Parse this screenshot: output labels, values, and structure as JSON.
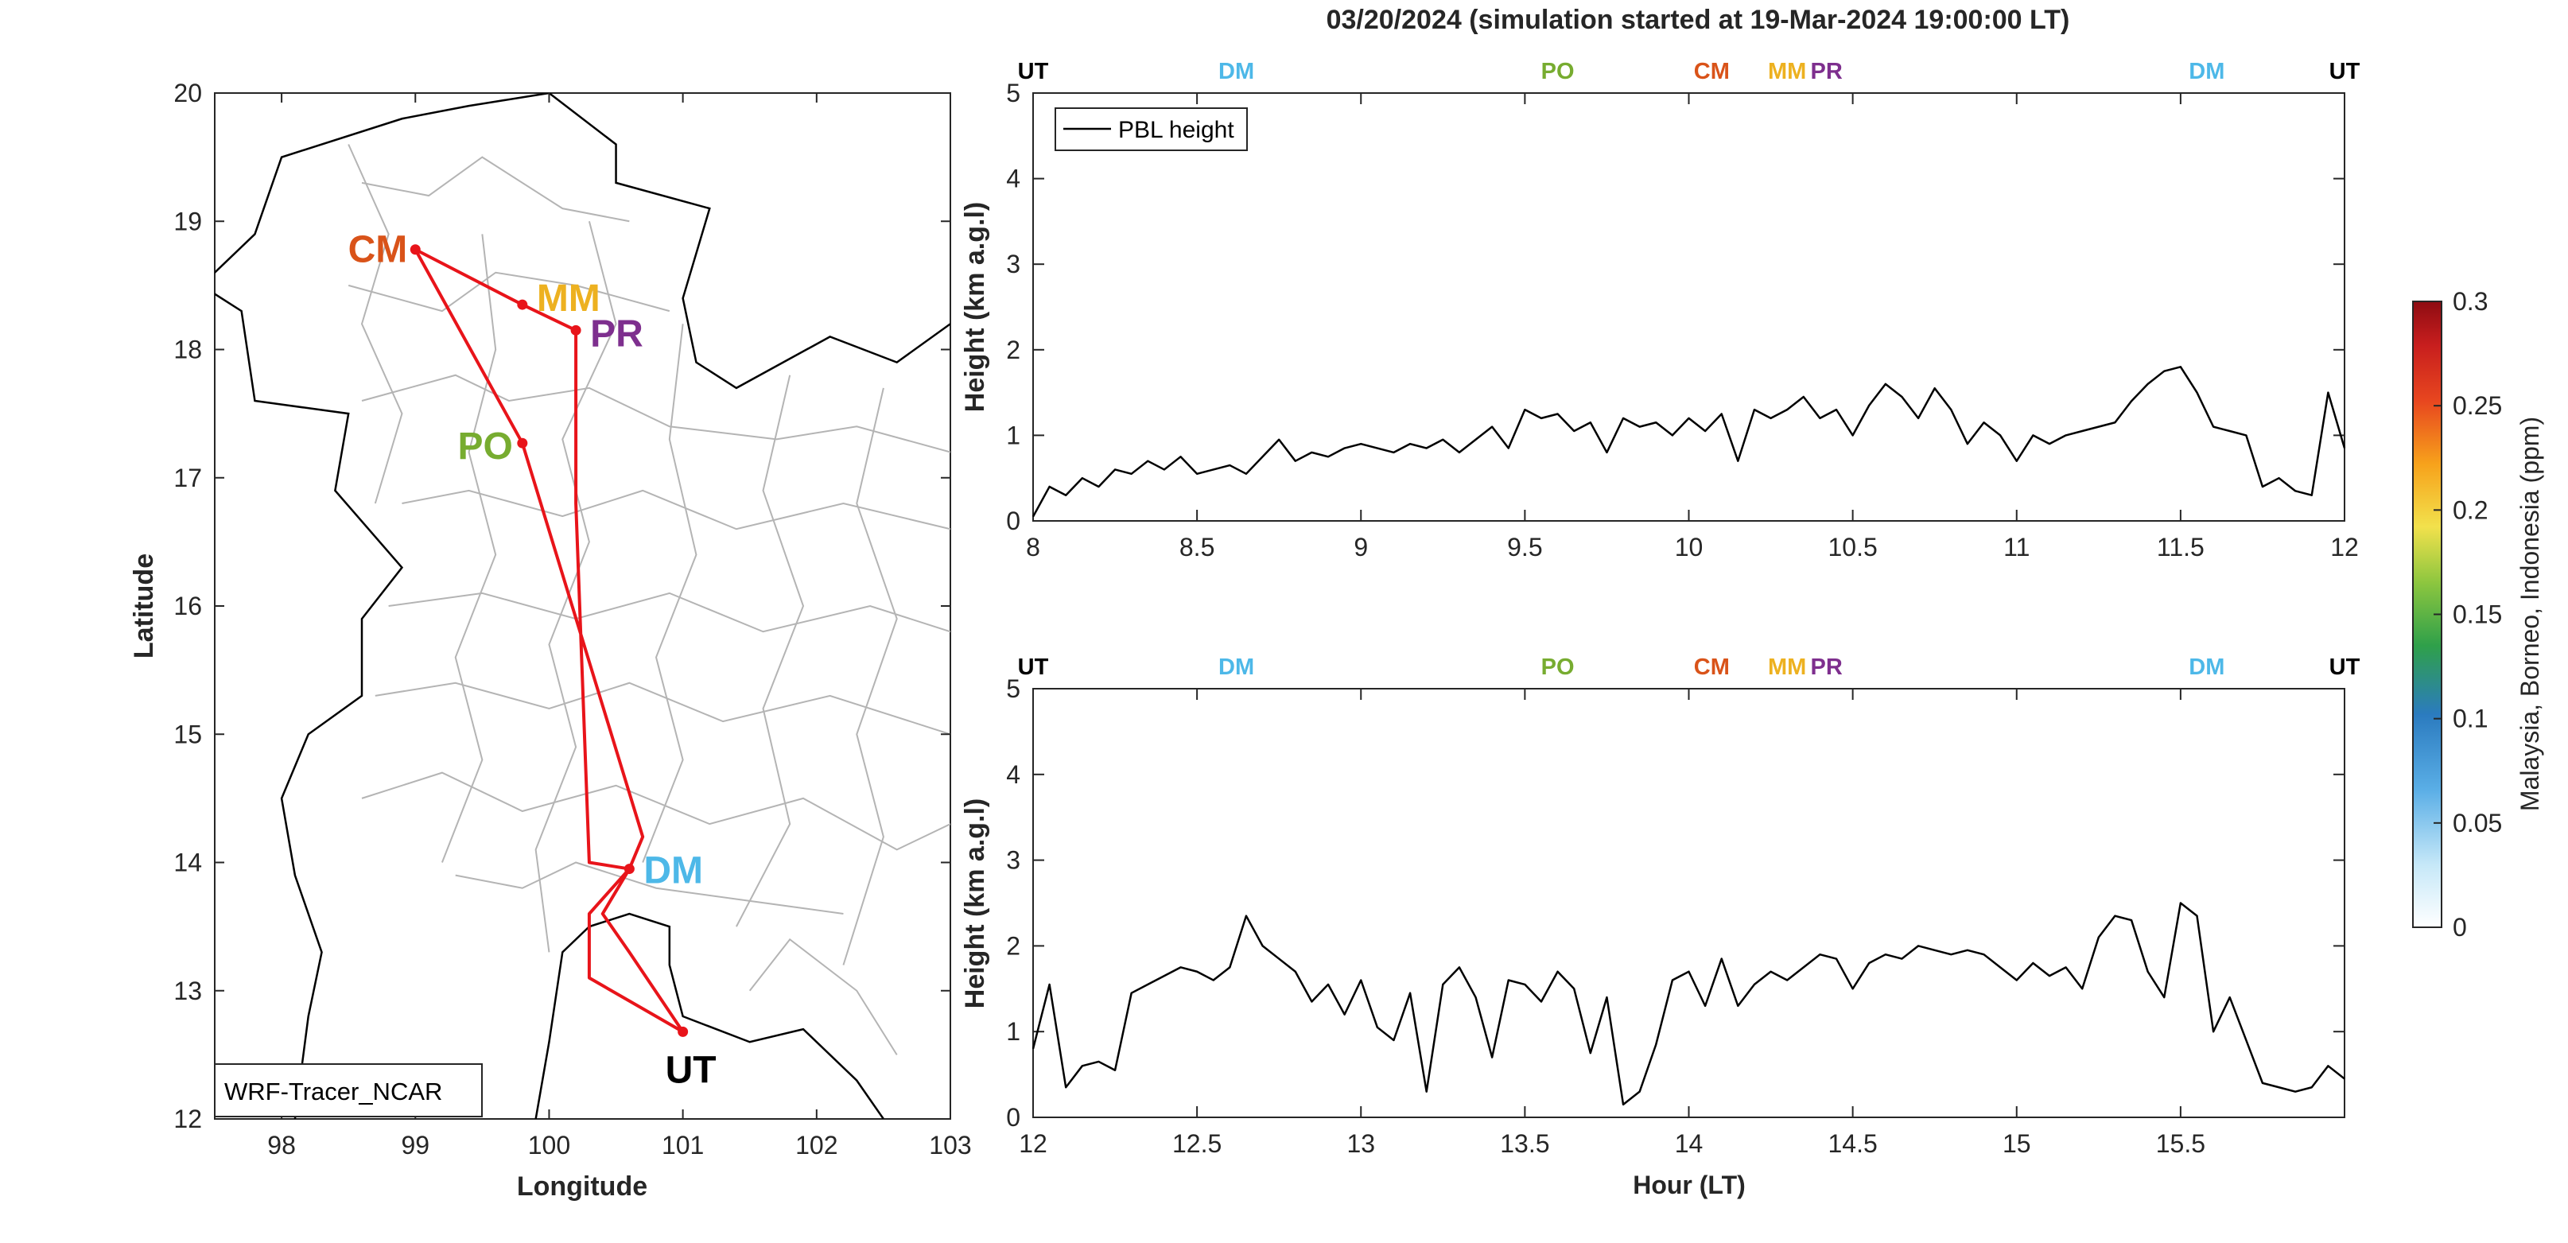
{
  "figure_title": "03/20/2024 (simulation started at 19-Mar-2024 19:00:00 LT)",
  "colors": {
    "route": "#e8141a",
    "UT": "#000000",
    "DM": "#4db8e8",
    "PO": "#77ac30",
    "CM": "#d95319",
    "MM": "#edb120",
    "PR": "#7e2f8e",
    "pbl_line": "#000000",
    "boundary_major": "#000000",
    "boundary_minor": "#b4b4b4"
  },
  "map": {
    "xlabel": "Longitude",
    "ylabel": "Latitude",
    "xlim": [
      97.5,
      103
    ],
    "ylim": [
      12,
      20
    ],
    "xticks": [
      "98",
      "99",
      "100",
      "101",
      "102",
      "103"
    ],
    "yticks": [
      "12",
      "13",
      "14",
      "15",
      "16",
      "17",
      "18",
      "19",
      "20"
    ],
    "legend_text": "WRF-Tracer_NCAR"
  },
  "site_labels": [
    {
      "code": "CM",
      "lon": 99.0,
      "lat": 18.78
    },
    {
      "code": "MM",
      "lon": 99.8,
      "lat": 18.35
    },
    {
      "code": "PR",
      "lon": 100.2,
      "lat": 18.15
    },
    {
      "code": "PO",
      "lon": 99.8,
      "lat": 17.27
    },
    {
      "code": "DM",
      "lon": 100.6,
      "lat": 13.95
    },
    {
      "code": "UT",
      "lon": 101.0,
      "lat": 12.68
    }
  ],
  "panels": [
    {
      "ylabel": "Height (km a.g.l)",
      "xlabel": "",
      "xticks": [
        "8",
        "8.5",
        "9",
        "9.5",
        "10",
        "10.5",
        "11",
        "11.5",
        "12"
      ],
      "yticks": [
        "0",
        "1",
        "2",
        "3",
        "4",
        "5"
      ],
      "legend_text": "PBL height",
      "top_markers": [
        "UT",
        "DM",
        "PO",
        "CM",
        "MM",
        "PR",
        "DM",
        "UT"
      ]
    },
    {
      "ylabel": "Height (km a.g.l)",
      "xlabel": "Hour (LT)",
      "xticks": [
        "12",
        "12.5",
        "13",
        "13.5",
        "14",
        "14.5",
        "15",
        "15.5"
      ],
      "yticks": [
        "0",
        "1",
        "2",
        "3",
        "4",
        "5"
      ],
      "legend_text": "",
      "top_markers": [
        "UT",
        "DM",
        "PO",
        "CM",
        "MM",
        "PR",
        "DM",
        "UT"
      ]
    }
  ],
  "colorbar": {
    "label": "Malaysia, Borneo, Indonesia (ppm)",
    "ticks": [
      "0",
      "0.05",
      "0.1",
      "0.15",
      "0.2",
      "0.25",
      "0.3"
    ],
    "range": [
      0,
      0.3
    ]
  },
  "chart_data": [
    {
      "type": "line",
      "title": "",
      "xlabel": "",
      "ylabel": "Height (km a.g.l)",
      "xlim": [
        8,
        12
      ],
      "ylim": [
        0,
        5
      ],
      "grid": false,
      "legend": "top-left",
      "series": [
        {
          "name": "PBL height",
          "x": [
            8.0,
            8.05,
            8.1,
            8.15,
            8.2,
            8.25,
            8.3,
            8.35,
            8.4,
            8.45,
            8.5,
            8.55,
            8.6,
            8.65,
            8.7,
            8.75,
            8.8,
            8.85,
            8.9,
            8.95,
            9.0,
            9.05,
            9.1,
            9.15,
            9.2,
            9.25,
            9.3,
            9.35,
            9.4,
            9.45,
            9.5,
            9.55,
            9.6,
            9.65,
            9.7,
            9.75,
            9.8,
            9.85,
            9.9,
            9.95,
            10.0,
            10.05,
            10.1,
            10.15,
            10.2,
            10.25,
            10.3,
            10.35,
            10.4,
            10.45,
            10.5,
            10.55,
            10.6,
            10.65,
            10.7,
            10.75,
            10.8,
            10.85,
            10.9,
            10.95,
            11.0,
            11.05,
            11.1,
            11.15,
            11.2,
            11.25,
            11.3,
            11.35,
            11.4,
            11.45,
            11.5,
            11.55,
            11.6,
            11.65,
            11.7,
            11.75,
            11.8,
            11.85,
            11.9,
            11.95,
            12.0
          ],
          "y": [
            0.05,
            0.4,
            0.3,
            0.5,
            0.4,
            0.6,
            0.55,
            0.7,
            0.6,
            0.75,
            0.55,
            0.6,
            0.65,
            0.55,
            0.75,
            0.95,
            0.7,
            0.8,
            0.75,
            0.85,
            0.9,
            0.85,
            0.8,
            0.9,
            0.85,
            0.95,
            0.8,
            0.95,
            1.1,
            0.85,
            1.3,
            1.2,
            1.25,
            1.05,
            1.15,
            0.8,
            1.2,
            1.1,
            1.15,
            1.0,
            1.2,
            1.05,
            1.25,
            0.7,
            1.3,
            1.2,
            1.3,
            1.45,
            1.2,
            1.3,
            1.0,
            1.35,
            1.6,
            1.45,
            1.2,
            1.55,
            1.3,
            0.9,
            1.15,
            1.0,
            0.7,
            1.0,
            0.9,
            1.0,
            1.05,
            1.1,
            1.15,
            1.4,
            1.6,
            1.75,
            1.8,
            1.5,
            1.1,
            1.05,
            1.0,
            0.4,
            0.5,
            0.35,
            0.3,
            1.5,
            0.85
          ]
        }
      ]
    },
    {
      "type": "line",
      "title": "",
      "xlabel": "Hour (LT)",
      "ylabel": "Height (km a.g.l)",
      "xlim": [
        12,
        16
      ],
      "ylim": [
        0,
        5
      ],
      "grid": false,
      "legend": "none",
      "series": [
        {
          "name": "",
          "x": [
            12.0,
            12.05,
            12.1,
            12.15,
            12.2,
            12.25,
            12.3,
            12.35,
            12.4,
            12.45,
            12.5,
            12.55,
            12.6,
            12.65,
            12.7,
            12.75,
            12.8,
            12.85,
            12.9,
            12.95,
            13.0,
            13.05,
            13.1,
            13.15,
            13.2,
            13.25,
            13.3,
            13.35,
            13.4,
            13.45,
            13.5,
            13.55,
            13.6,
            13.65,
            13.7,
            13.75,
            13.8,
            13.85,
            13.9,
            13.95,
            14.0,
            14.05,
            14.1,
            14.15,
            14.2,
            14.25,
            14.3,
            14.35,
            14.4,
            14.45,
            14.5,
            14.55,
            14.6,
            14.65,
            14.7,
            14.75,
            14.8,
            14.85,
            14.9,
            14.95,
            15.0,
            15.05,
            15.1,
            15.15,
            15.2,
            15.25,
            15.3,
            15.35,
            15.4,
            15.45,
            15.5,
            15.55,
            15.6,
            15.65,
            15.7,
            15.75,
            15.8,
            15.85,
            15.9,
            15.95,
            16.0
          ],
          "y": [
            0.8,
            1.55,
            0.35,
            0.6,
            0.65,
            0.55,
            1.45,
            1.55,
            1.65,
            1.75,
            1.7,
            1.6,
            1.75,
            2.35,
            2.0,
            1.85,
            1.7,
            1.35,
            1.55,
            1.2,
            1.6,
            1.05,
            0.9,
            1.45,
            0.3,
            1.55,
            1.75,
            1.4,
            0.7,
            1.6,
            1.55,
            1.35,
            1.7,
            1.5,
            0.75,
            1.4,
            0.15,
            0.3,
            0.85,
            1.6,
            1.7,
            1.3,
            1.85,
            1.3,
            1.55,
            1.7,
            1.6,
            1.75,
            1.9,
            1.85,
            1.5,
            1.8,
            1.9,
            1.85,
            2.0,
            1.95,
            1.9,
            1.95,
            1.9,
            1.75,
            1.6,
            1.8,
            1.65,
            1.75,
            1.5,
            2.1,
            2.35,
            2.3,
            1.7,
            1.4,
            2.5,
            2.35,
            1.0,
            1.4,
            0.9,
            0.4,
            0.35,
            0.3,
            0.35,
            0.6,
            0.45
          ]
        }
      ]
    }
  ]
}
